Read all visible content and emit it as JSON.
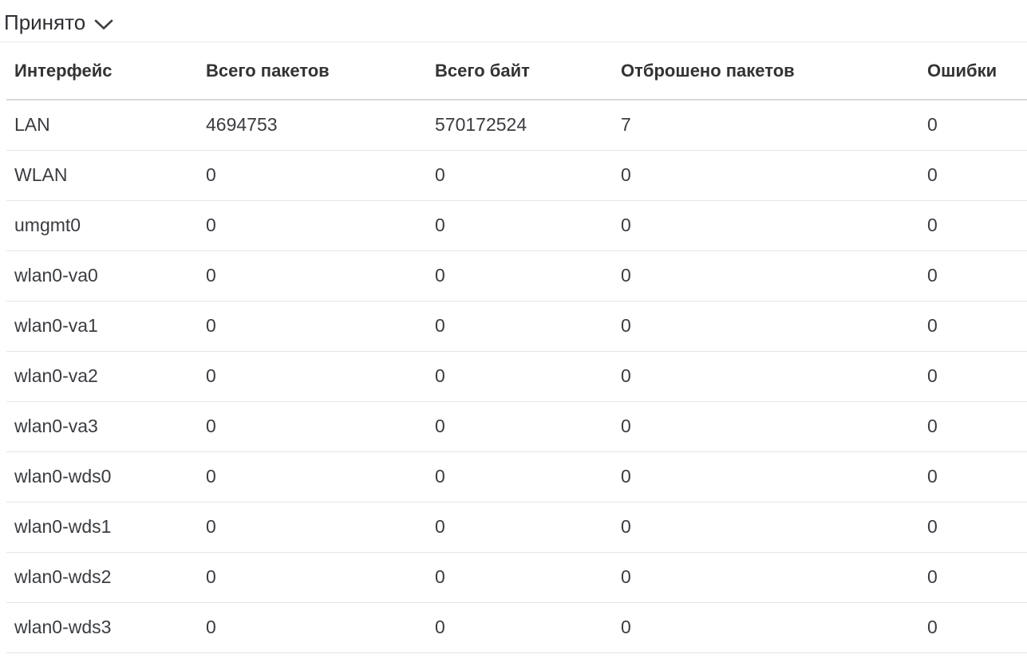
{
  "accordion": {
    "title": "Принято",
    "state": "expanded",
    "chevron_icon": "chevron-down"
  },
  "table": {
    "columns": [
      "Интерфейс",
      "Всего пакетов",
      "Всего байт",
      "Отброшено пакетов",
      "Ошибки"
    ],
    "column_keys": [
      "interface",
      "total-packets",
      "total-bytes",
      "dropped-packets",
      "errors"
    ],
    "rows": [
      [
        "LAN",
        "4694753",
        "570172524",
        "7",
        "0"
      ],
      [
        "WLAN",
        "0",
        "0",
        "0",
        "0"
      ],
      [
        "umgmt0",
        "0",
        "0",
        "0",
        "0"
      ],
      [
        "wlan0-va0",
        "0",
        "0",
        "0",
        "0"
      ],
      [
        "wlan0-va1",
        "0",
        "0",
        "0",
        "0"
      ],
      [
        "wlan0-va2",
        "0",
        "0",
        "0",
        "0"
      ],
      [
        "wlan0-va3",
        "0",
        "0",
        "0",
        "0"
      ],
      [
        "wlan0-wds0",
        "0",
        "0",
        "0",
        "0"
      ],
      [
        "wlan0-wds1",
        "0",
        "0",
        "0",
        "0"
      ],
      [
        "wlan0-wds2",
        "0",
        "0",
        "0",
        "0"
      ],
      [
        "wlan0-wds3",
        "0",
        "0",
        "0",
        "0"
      ]
    ]
  },
  "colors": {
    "background": "#ffffff",
    "title_text": "#2d2f33",
    "header_text": "#333333",
    "cell_text": "#3a3c40",
    "title_divider": "#e9e9e9",
    "header_divider": "#d8d8d8",
    "row_divider": "#e5e5e5",
    "chevron_stroke": "#3c4043"
  }
}
